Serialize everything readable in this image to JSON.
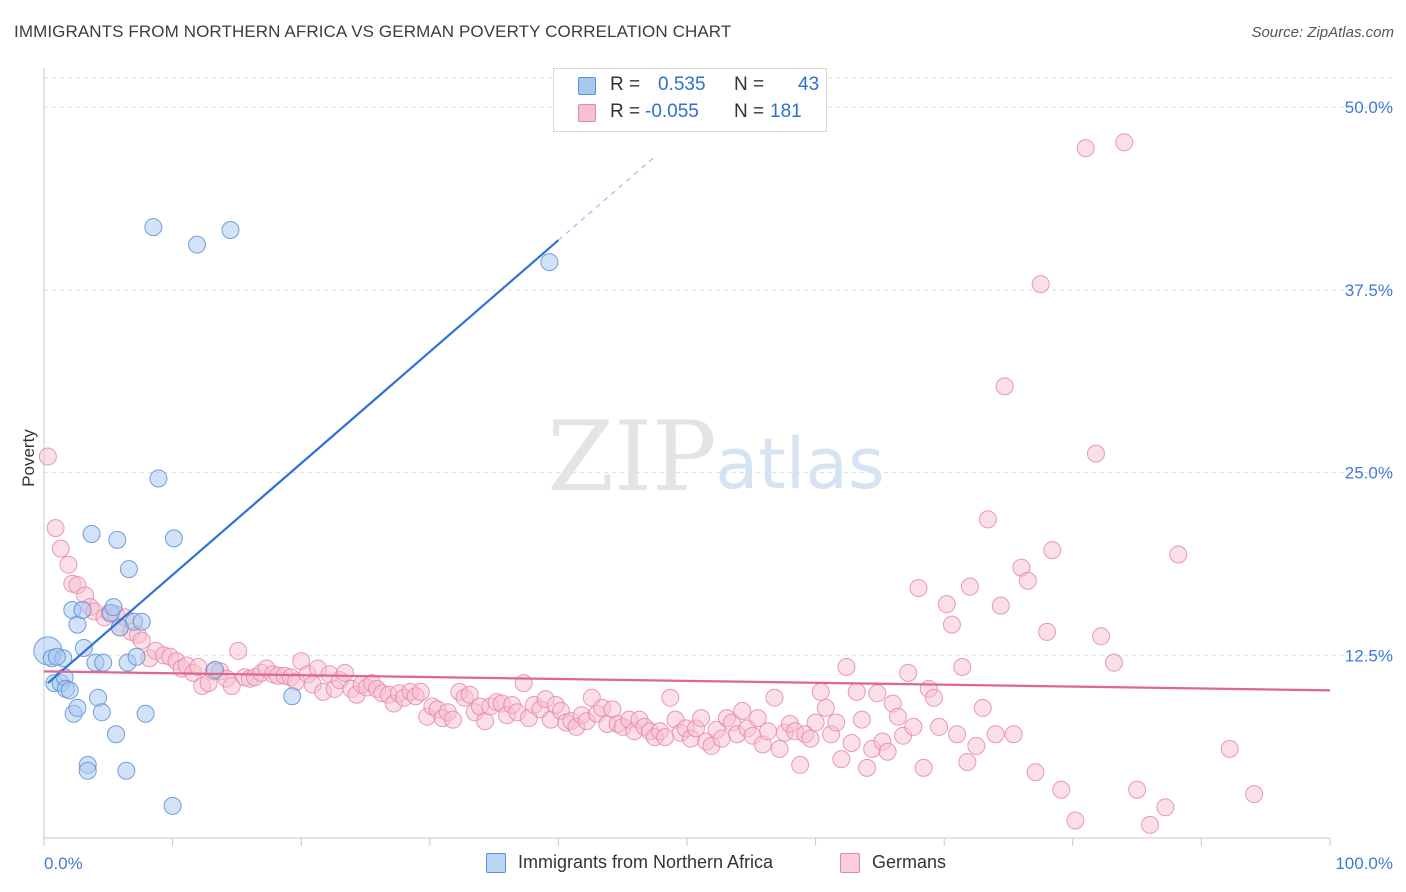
{
  "title": "IMMIGRANTS FROM NORTHERN AFRICA VS GERMAN POVERTY CORRELATION CHART",
  "source": "Source: ZipAtlas.com",
  "watermark": {
    "zip": "ZIP",
    "atlas": "atlas"
  },
  "legend_top": {
    "rows": [
      {
        "r_label": "R =",
        "r_value": "0.535",
        "n_label": "N =",
        "n_value": "43",
        "color": "#a8c8f0",
        "border": "#5b8fd6"
      },
      {
        "r_label": "R =",
        "r_value": "-0.055",
        "n_label": "N =",
        "n_value": "181",
        "color": "#f7c0d0",
        "border": "#e58aa6"
      }
    ]
  },
  "legend_bottom": {
    "items": [
      {
        "label": "Immigrants from Northern Africa",
        "color": "#bcd4f4",
        "border": "#5b8fd6"
      },
      {
        "label": "Germans",
        "color": "#f9cdd9",
        "border": "#e58aa6"
      }
    ]
  },
  "chart_data": {
    "type": "scatter",
    "title": "IMMIGRANTS FROM NORTHERN AFRICA VS GERMAN POVERTY CORRELATION CHART",
    "xlabel": "",
    "ylabel": "Poverty",
    "xlim": [
      0,
      100
    ],
    "ylim": [
      0,
      52
    ],
    "x_tick_labels": [
      "0.0%",
      "100.0%"
    ],
    "y_ticks": [
      12.5,
      25,
      37.5,
      50
    ],
    "y_tick_labels": [
      "12.5%",
      "25.0%",
      "37.5%",
      "50.0%"
    ],
    "grid": true,
    "legend_placement": "top-center",
    "series": [
      {
        "name": "Immigrants from Northern Africa",
        "color": "#5b8fd6",
        "fill": "#a8c8f0",
        "r": 0.535,
        "n": 43,
        "trend": {
          "x0": 0.3,
          "y0": 10.6,
          "x1": 40.0,
          "y1": 40.9,
          "dash_to_x": 47.5
        },
        "points": [
          [
            0.3,
            12.8
          ],
          [
            0.6,
            12.3
          ],
          [
            0.8,
            10.6
          ],
          [
            1.3,
            10.6
          ],
          [
            1.5,
            12.3
          ],
          [
            1.6,
            11.0
          ],
          [
            1.7,
            10.2
          ],
          [
            2.0,
            10.1
          ],
          [
            2.2,
            15.6
          ],
          [
            2.3,
            8.5
          ],
          [
            2.6,
            14.6
          ],
          [
            2.6,
            8.9
          ],
          [
            3.0,
            15.6
          ],
          [
            3.1,
            13.0
          ],
          [
            3.4,
            5.0
          ],
          [
            3.4,
            4.6
          ],
          [
            3.7,
            20.8
          ],
          [
            4.0,
            12.0
          ],
          [
            4.2,
            9.6
          ],
          [
            4.5,
            8.6
          ],
          [
            4.6,
            12.0
          ],
          [
            5.2,
            15.4
          ],
          [
            5.4,
            15.8
          ],
          [
            5.6,
            7.1
          ],
          [
            5.7,
            20.4
          ],
          [
            5.9,
            14.4
          ],
          [
            6.4,
            4.6
          ],
          [
            6.5,
            12.0
          ],
          [
            6.6,
            18.4
          ],
          [
            7.0,
            14.8
          ],
          [
            7.2,
            12.4
          ],
          [
            7.6,
            14.8
          ],
          [
            7.9,
            8.5
          ],
          [
            8.5,
            41.8
          ],
          [
            8.9,
            24.6
          ],
          [
            10.0,
            2.2
          ],
          [
            10.1,
            20.5
          ],
          [
            11.9,
            40.6
          ],
          [
            13.3,
            11.5
          ],
          [
            14.5,
            41.6
          ],
          [
            19.3,
            9.7
          ],
          [
            39.3,
            39.4
          ],
          [
            1.0,
            12.4
          ]
        ]
      },
      {
        "name": "Germans",
        "color": "#e58aa6",
        "fill": "#f7c0d0",
        "r": -0.055,
        "n": 181,
        "trend": {
          "x0": 0.0,
          "y0": 11.4,
          "x1": 100.0,
          "y1": 10.1
        },
        "points": [
          [
            0.3,
            26.1
          ],
          [
            0.9,
            21.2
          ],
          [
            1.3,
            19.8
          ],
          [
            1.9,
            18.7
          ],
          [
            2.2,
            17.4
          ],
          [
            2.6,
            17.3
          ],
          [
            3.2,
            16.6
          ],
          [
            3.6,
            15.8
          ],
          [
            3.9,
            15.5
          ],
          [
            4.7,
            15.1
          ],
          [
            5.1,
            15.4
          ],
          [
            5.6,
            15.3
          ],
          [
            5.9,
            14.4
          ],
          [
            6.3,
            15.1
          ],
          [
            6.8,
            14.1
          ],
          [
            7.3,
            13.9
          ],
          [
            7.6,
            13.5
          ],
          [
            8.2,
            12.3
          ],
          [
            8.7,
            12.8
          ],
          [
            9.3,
            12.5
          ],
          [
            9.8,
            12.4
          ],
          [
            10.3,
            12.1
          ],
          [
            10.7,
            11.6
          ],
          [
            11.1,
            11.8
          ],
          [
            11.6,
            11.3
          ],
          [
            12.0,
            11.7
          ],
          [
            12.3,
            10.4
          ],
          [
            12.8,
            10.6
          ],
          [
            13.2,
            11.4
          ],
          [
            13.7,
            11.4
          ],
          [
            14.2,
            10.9
          ],
          [
            14.6,
            10.4
          ],
          [
            15.1,
            12.8
          ],
          [
            15.6,
            11.0
          ],
          [
            16.0,
            10.9
          ],
          [
            16.4,
            11.0
          ],
          [
            16.9,
            11.3
          ],
          [
            17.3,
            11.6
          ],
          [
            17.8,
            11.2
          ],
          [
            18.2,
            11.1
          ],
          [
            18.7,
            11.1
          ],
          [
            19.2,
            11.0
          ],
          [
            19.6,
            10.7
          ],
          [
            20.0,
            12.1
          ],
          [
            20.5,
            11.2
          ],
          [
            20.9,
            10.5
          ],
          [
            21.3,
            11.6
          ],
          [
            21.7,
            10.0
          ],
          [
            22.2,
            11.2
          ],
          [
            22.6,
            10.2
          ],
          [
            23.0,
            10.8
          ],
          [
            23.4,
            11.3
          ],
          [
            23.9,
            10.2
          ],
          [
            24.3,
            9.8
          ],
          [
            24.7,
            10.5
          ],
          [
            25.1,
            10.3
          ],
          [
            25.5,
            10.6
          ],
          [
            25.9,
            10.2
          ],
          [
            26.3,
            9.9
          ],
          [
            26.8,
            9.8
          ],
          [
            27.2,
            9.2
          ],
          [
            27.6,
            9.9
          ],
          [
            28.0,
            9.6
          ],
          [
            28.5,
            10.0
          ],
          [
            28.9,
            9.7
          ],
          [
            29.3,
            10.0
          ],
          [
            29.8,
            8.3
          ],
          [
            30.2,
            9.0
          ],
          [
            30.6,
            8.8
          ],
          [
            31.0,
            8.2
          ],
          [
            31.4,
            8.6
          ],
          [
            31.8,
            8.1
          ],
          [
            32.3,
            10.0
          ],
          [
            32.7,
            9.6
          ],
          [
            33.1,
            9.8
          ],
          [
            33.5,
            8.6
          ],
          [
            33.9,
            9.0
          ],
          [
            34.3,
            8.0
          ],
          [
            34.7,
            9.0
          ],
          [
            35.2,
            9.3
          ],
          [
            35.6,
            9.2
          ],
          [
            36.0,
            8.4
          ],
          [
            36.4,
            9.1
          ],
          [
            36.8,
            8.6
          ],
          [
            37.3,
            10.6
          ],
          [
            37.7,
            8.2
          ],
          [
            38.1,
            9.1
          ],
          [
            38.6,
            8.8
          ],
          [
            39.0,
            9.5
          ],
          [
            39.4,
            8.1
          ],
          [
            39.8,
            9.1
          ],
          [
            40.2,
            8.7
          ],
          [
            40.6,
            7.9
          ],
          [
            41.0,
            8.0
          ],
          [
            41.4,
            7.6
          ],
          [
            41.8,
            8.4
          ],
          [
            42.2,
            8.0
          ],
          [
            42.6,
            9.6
          ],
          [
            43.0,
            8.5
          ],
          [
            43.4,
            8.9
          ],
          [
            43.8,
            7.8
          ],
          [
            44.2,
            8.8
          ],
          [
            44.6,
            7.8
          ],
          [
            45.0,
            7.6
          ],
          [
            45.5,
            8.1
          ],
          [
            45.9,
            7.3
          ],
          [
            46.3,
            8.1
          ],
          [
            46.7,
            7.6
          ],
          [
            47.1,
            7.3
          ],
          [
            47.5,
            6.9
          ],
          [
            47.9,
            7.3
          ],
          [
            48.3,
            6.9
          ],
          [
            48.7,
            9.6
          ],
          [
            49.1,
            8.1
          ],
          [
            49.5,
            7.2
          ],
          [
            49.9,
            7.5
          ],
          [
            50.3,
            6.8
          ],
          [
            50.7,
            7.5
          ],
          [
            51.1,
            8.2
          ],
          [
            51.5,
            6.6
          ],
          [
            51.9,
            6.3
          ],
          [
            52.3,
            7.4
          ],
          [
            52.7,
            6.8
          ],
          [
            53.1,
            8.2
          ],
          [
            53.5,
            7.9
          ],
          [
            53.9,
            7.1
          ],
          [
            54.3,
            8.7
          ],
          [
            54.7,
            7.5
          ],
          [
            55.1,
            7.0
          ],
          [
            55.5,
            8.2
          ],
          [
            55.9,
            6.4
          ],
          [
            56.3,
            7.3
          ],
          [
            56.8,
            9.6
          ],
          [
            57.2,
            6.1
          ],
          [
            57.6,
            7.2
          ],
          [
            58.0,
            7.8
          ],
          [
            58.4,
            7.3
          ],
          [
            58.8,
            5.0
          ],
          [
            59.2,
            7.1
          ],
          [
            59.6,
            6.8
          ],
          [
            60.0,
            7.9
          ],
          [
            60.4,
            10.0
          ],
          [
            60.8,
            8.9
          ],
          [
            61.2,
            7.1
          ],
          [
            61.6,
            7.9
          ],
          [
            62.0,
            5.4
          ],
          [
            62.4,
            11.7
          ],
          [
            62.8,
            6.5
          ],
          [
            63.2,
            10.0
          ],
          [
            63.6,
            8.1
          ],
          [
            64.0,
            4.8
          ],
          [
            64.4,
            6.1
          ],
          [
            64.8,
            9.9
          ],
          [
            65.2,
            6.6
          ],
          [
            65.6,
            5.9
          ],
          [
            66.0,
            9.2
          ],
          [
            66.4,
            8.3
          ],
          [
            66.8,
            7.0
          ],
          [
            67.2,
            11.3
          ],
          [
            67.6,
            7.6
          ],
          [
            68.0,
            17.1
          ],
          [
            68.4,
            4.8
          ],
          [
            68.8,
            10.2
          ],
          [
            69.2,
            9.6
          ],
          [
            69.6,
            7.6
          ],
          [
            70.2,
            16.0
          ],
          [
            70.6,
            14.6
          ],
          [
            71.0,
            7.1
          ],
          [
            71.4,
            11.7
          ],
          [
            71.8,
            5.2
          ],
          [
            72.0,
            17.2
          ],
          [
            72.5,
            6.3
          ],
          [
            73.0,
            8.9
          ],
          [
            73.4,
            21.8
          ],
          [
            74.0,
            7.1
          ],
          [
            74.4,
            15.9
          ],
          [
            74.7,
            30.9
          ],
          [
            75.4,
            7.1
          ],
          [
            76.0,
            18.5
          ],
          [
            76.5,
            17.6
          ],
          [
            77.1,
            4.5
          ],
          [
            77.5,
            37.9
          ],
          [
            78.0,
            14.1
          ],
          [
            78.4,
            19.7
          ],
          [
            79.1,
            3.3
          ],
          [
            80.2,
            1.2
          ],
          [
            81.0,
            47.2
          ],
          [
            81.8,
            26.3
          ],
          [
            82.2,
            13.8
          ],
          [
            83.2,
            12.0
          ],
          [
            84.0,
            47.6
          ],
          [
            85.0,
            3.3
          ],
          [
            86.0,
            0.9
          ],
          [
            87.2,
            2.1
          ],
          [
            88.2,
            19.4
          ],
          [
            92.2,
            6.1
          ],
          [
            94.1,
            3.0
          ]
        ]
      }
    ]
  }
}
